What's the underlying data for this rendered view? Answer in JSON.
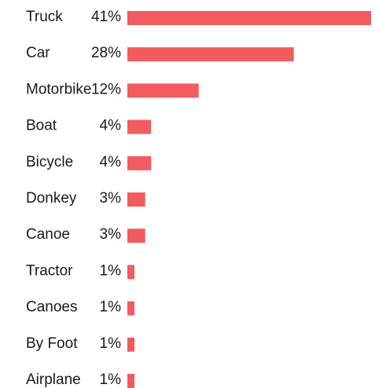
{
  "chart_data": {
    "type": "bar",
    "orientation": "horizontal",
    "title": "",
    "xlabel": "",
    "ylabel": "",
    "categories": [
      "Truck",
      "Car",
      "Motorbike",
      "Boat",
      "Bicycle",
      "Donkey",
      "Canoe",
      "Tractor",
      "Canoes",
      "By Foot",
      "Airplane"
    ],
    "values": [
      41,
      28,
      12,
      4,
      4,
      3,
      3,
      1,
      1,
      1,
      1
    ],
    "value_labels": [
      "41%",
      "28%",
      "12%",
      "4%",
      "4%",
      "3%",
      "3%",
      "1%",
      "1%",
      "1%",
      "1%"
    ],
    "unit": "%",
    "bar_color": "#f25c60",
    "grid": false,
    "legend": "none"
  }
}
